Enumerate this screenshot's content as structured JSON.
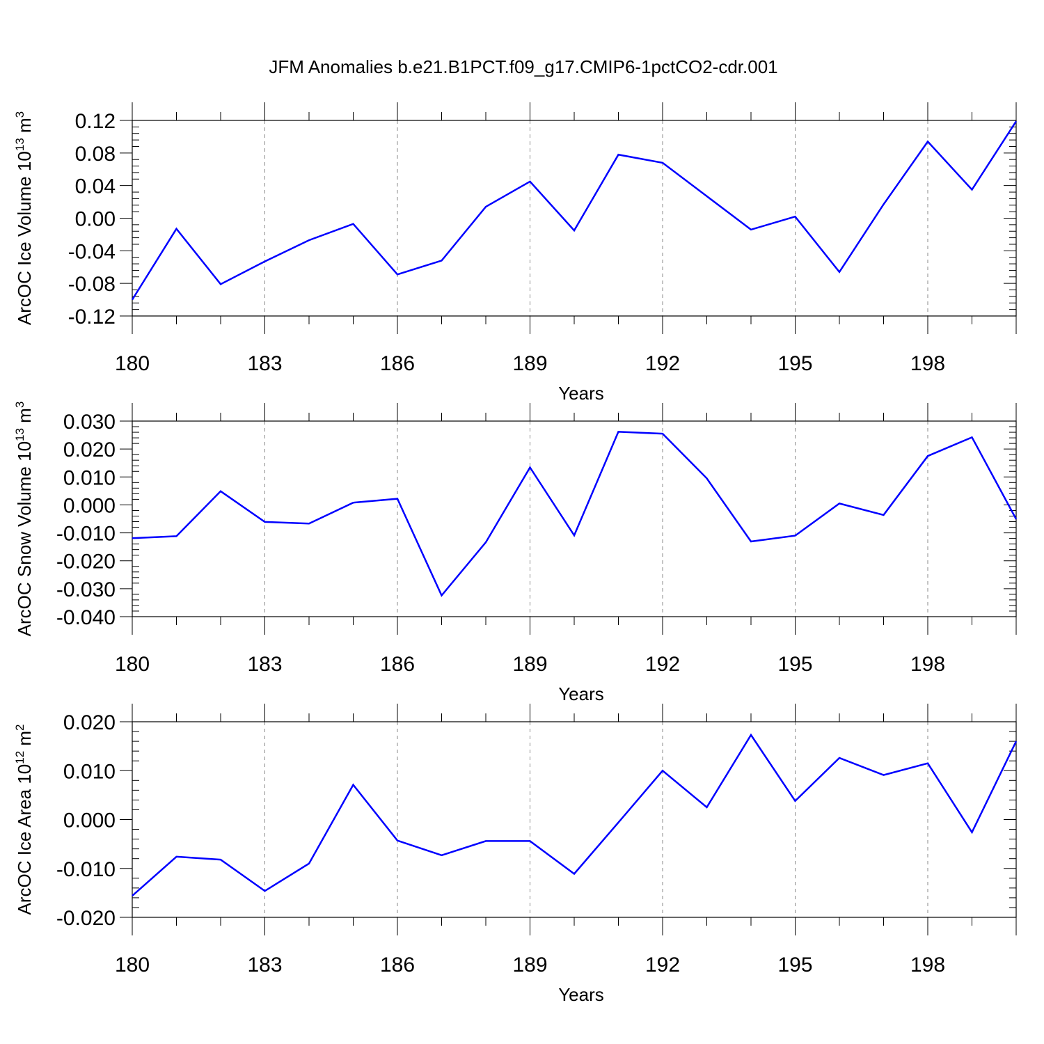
{
  "chart_data": {
    "title": "JFM Anomalies b.e21.B1PCT.f09_g17.CMIP6-1pctCO2-cdr.001",
    "panels": [
      {
        "type": "line",
        "ylabel": {
          "text": "ArcOC Ice Volume 10",
          "sup": "13",
          "unit": " m",
          "unit_sup": "3"
        },
        "xlabel": "Years",
        "ylim": [
          -0.12,
          0.12
        ],
        "yticks": [
          -0.12,
          -0.08,
          -0.04,
          0.0,
          0.04,
          0.08,
          0.12
        ],
        "ytick_labels": [
          "-0.12",
          "-0.08",
          "-0.04",
          "0.00",
          "0.04",
          "0.08",
          "0.12"
        ],
        "xlim": [
          180,
          200
        ],
        "xticks": [
          180,
          183,
          186,
          189,
          192,
          195,
          198
        ],
        "xtick_labels": [
          "180",
          "183",
          "186",
          "189",
          "192",
          "195",
          "198"
        ],
        "grid": "vertical-dashed",
        "series": [
          {
            "name": "Ice Volume",
            "color": "#0000ff",
            "x": [
              180,
              181,
              182,
              183,
              184,
              185,
              186,
              187,
              188,
              189,
              190,
              191,
              192,
              193,
              194,
              195,
              196,
              197,
              198,
              199,
              200
            ],
            "values": [
              -0.1,
              -0.013,
              -0.081,
              -0.053,
              -0.027,
              -0.007,
              -0.069,
              -0.052,
              0.014,
              0.045,
              -0.015,
              0.078,
              0.068,
              0.027,
              -0.014,
              0.002,
              -0.066,
              0.017,
              0.094,
              0.035,
              0.119
            ]
          }
        ]
      },
      {
        "type": "line",
        "ylabel": {
          "text": "ArcOC Snow Volume 10",
          "sup": "13",
          "unit": " m",
          "unit_sup": "3"
        },
        "xlabel": "Years",
        "ylim": [
          -0.04,
          0.03
        ],
        "yticks": [
          -0.04,
          -0.03,
          -0.02,
          -0.01,
          0.0,
          0.01,
          0.02,
          0.03
        ],
        "ytick_labels": [
          "-0.040",
          "-0.030",
          "-0.020",
          "-0.010",
          "0.000",
          "0.010",
          "0.020",
          "0.030"
        ],
        "xlim": [
          180,
          200
        ],
        "xticks": [
          180,
          183,
          186,
          189,
          192,
          195,
          198
        ],
        "xtick_labels": [
          "180",
          "183",
          "186",
          "189",
          "192",
          "195",
          "198"
        ],
        "grid": "vertical-dashed",
        "series": [
          {
            "name": "Snow Volume",
            "color": "#0000ff",
            "x": [
              180,
              181,
              182,
              183,
              184,
              185,
              186,
              187,
              188,
              189,
              190,
              191,
              192,
              193,
              194,
              195,
              196,
              197,
              198,
              199,
              200
            ],
            "values": [
              -0.0119,
              -0.0112,
              0.0049,
              -0.0061,
              -0.0067,
              0.0008,
              0.0022,
              -0.0324,
              -0.0134,
              0.0134,
              -0.0109,
              0.0262,
              0.0255,
              0.0095,
              -0.0131,
              -0.011,
              0.0005,
              -0.0036,
              0.0175,
              0.0242,
              -0.0051
            ]
          }
        ]
      },
      {
        "type": "line",
        "ylabel": {
          "text": "ArcOC Ice Area 10",
          "sup": "12",
          "unit": " m",
          "unit_sup": "2"
        },
        "xlabel": "Years",
        "ylim": [
          -0.02,
          0.02
        ],
        "yticks": [
          -0.02,
          -0.01,
          0.0,
          0.01,
          0.02
        ],
        "ytick_labels": [
          "-0.020",
          "-0.010",
          "0.000",
          "0.010",
          "0.020"
        ],
        "xlim": [
          180,
          200
        ],
        "xticks": [
          180,
          183,
          186,
          189,
          192,
          195,
          198
        ],
        "xtick_labels": [
          "180",
          "183",
          "186",
          "189",
          "192",
          "195",
          "198"
        ],
        "grid": "vertical-dashed",
        "series": [
          {
            "name": "Ice Area",
            "color": "#0000ff",
            "x": [
              180,
              181,
              182,
              183,
              184,
              185,
              186,
              187,
              188,
              189,
              190,
              191,
              192,
              193,
              194,
              195,
              196,
              197,
              198,
              199,
              200
            ],
            "values": [
              -0.0156,
              -0.0076,
              -0.0082,
              -0.0146,
              -0.009,
              0.0071,
              -0.0043,
              -0.0073,
              -0.0044,
              -0.0044,
              -0.0111,
              -0.0006,
              0.01,
              0.0025,
              0.0173,
              0.0038,
              0.0126,
              0.0091,
              0.0115,
              -0.0026,
              0.016
            ]
          }
        ]
      }
    ]
  }
}
